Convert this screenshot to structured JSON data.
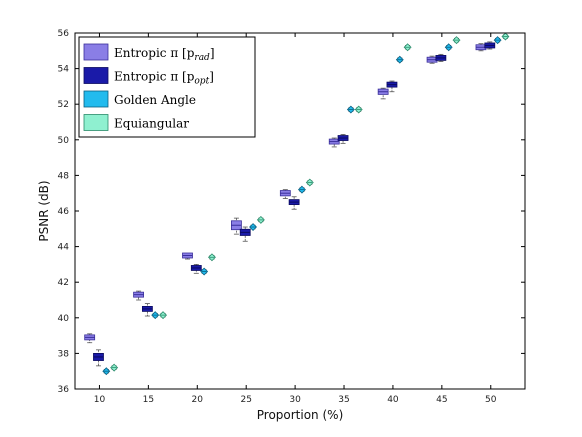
{
  "chart_data": {
    "type": "boxplot",
    "xlabel": "Proportion (%)",
    "ylabel": "PSNR (dB)",
    "xlim": [
      7.5,
      53.5
    ],
    "ylim": [
      36,
      56
    ],
    "xticks": [
      10,
      15,
      20,
      25,
      30,
      35,
      40,
      45,
      50
    ],
    "xtick_labels": [
      "10",
      "15",
      "20",
      "25",
      "30",
      "35",
      "40",
      "45",
      "50"
    ],
    "yticks": [
      36,
      38,
      40,
      42,
      44,
      46,
      48,
      50,
      52,
      54,
      56
    ],
    "ytick_labels": [
      "36",
      "38",
      "40",
      "42",
      "44",
      "46",
      "48",
      "50",
      "52",
      "54",
      "56"
    ],
    "grid": false,
    "legend_position": "top-left",
    "categories": [
      10,
      15,
      20,
      25,
      30,
      35,
      40,
      45,
      50
    ],
    "series": [
      {
        "name": "Entropic π [p_rad]",
        "label_main": "Entropic π [p",
        "label_sub": "rad",
        "label_close": "]",
        "color": "#8a7ee6",
        "edge": "#3a2f9a",
        "marker": "box",
        "x": [
          9,
          14,
          19,
          24,
          29,
          34,
          39,
          44,
          49
        ],
        "median": [
          38.9,
          41.3,
          43.5,
          45.2,
          47.0,
          49.9,
          52.7,
          54.5,
          55.2
        ],
        "q1": [
          38.8,
          41.15,
          43.4,
          44.9,
          46.8,
          49.75,
          52.5,
          54.4,
          55.1
        ],
        "q3": [
          39.05,
          41.4,
          43.55,
          45.4,
          47.1,
          50.0,
          52.8,
          54.6,
          55.3
        ],
        "whisker_low": [
          38.6,
          41.0,
          43.3,
          44.7,
          46.7,
          49.6,
          52.3,
          54.3,
          55.0
        ],
        "whisker_high": [
          39.1,
          41.5,
          43.6,
          45.6,
          47.2,
          50.1,
          52.9,
          54.7,
          55.4
        ]
      },
      {
        "name": "Entropic π [p_opt]",
        "label_main": "Entropic π [p",
        "label_sub": "opt",
        "label_close": "]",
        "color": "#1a1aa8",
        "edge": "#0a0a60",
        "marker": "box",
        "x": [
          9.9,
          14.9,
          19.9,
          24.9,
          29.9,
          34.9,
          39.9,
          44.9,
          49.9
        ],
        "median": [
          37.8,
          40.5,
          42.8,
          44.8,
          46.5,
          50.1,
          53.1,
          54.6,
          55.3
        ],
        "q1": [
          37.6,
          40.35,
          42.7,
          44.6,
          46.35,
          49.95,
          52.95,
          54.5,
          55.2
        ],
        "q3": [
          38.0,
          40.6,
          42.9,
          44.95,
          46.6,
          50.2,
          53.2,
          54.7,
          55.4
        ],
        "whisker_low": [
          37.3,
          40.1,
          42.5,
          44.3,
          46.1,
          49.8,
          52.7,
          54.4,
          55.1
        ],
        "whisker_high": [
          38.2,
          40.8,
          43.0,
          45.1,
          46.8,
          50.3,
          53.3,
          54.8,
          55.5
        ]
      },
      {
        "name": "Golden Angle",
        "label_main": "Golden Angle",
        "label_sub": "",
        "label_close": "",
        "color": "#22bbee",
        "edge": "#0a5f80",
        "marker": "diamond",
        "x": [
          10.7,
          15.7,
          20.7,
          25.7,
          30.7,
          35.7,
          40.7,
          45.7,
          50.7
        ],
        "median": [
          37.0,
          40.15,
          42.6,
          45.1,
          47.2,
          51.7,
          54.5,
          55.2,
          55.6
        ],
        "q1": [
          36.95,
          40.1,
          42.55,
          45.05,
          47.15,
          51.65,
          54.45,
          55.15,
          55.55
        ],
        "q3": [
          37.05,
          40.2,
          42.65,
          45.15,
          47.25,
          51.75,
          54.55,
          55.25,
          55.65
        ],
        "whisker_low": [
          36.9,
          40.05,
          42.5,
          45.0,
          47.1,
          51.6,
          54.4,
          55.1,
          55.5
        ],
        "whisker_high": [
          37.1,
          40.25,
          42.7,
          45.2,
          47.3,
          51.8,
          54.6,
          55.3,
          55.7
        ]
      },
      {
        "name": "Equiangular",
        "label_main": "Equiangular",
        "label_sub": "",
        "label_close": "",
        "color": "#8ff0d0",
        "edge": "#2a8a6a",
        "marker": "diamond",
        "x": [
          11.5,
          16.5,
          21.5,
          26.5,
          31.5,
          36.5,
          41.5,
          46.5,
          51.5
        ],
        "median": [
          37.2,
          40.15,
          43.4,
          45.5,
          47.6,
          51.7,
          55.2,
          55.6,
          55.8
        ],
        "q1": [
          37.15,
          40.1,
          43.35,
          45.45,
          47.55,
          51.65,
          55.15,
          55.55,
          55.75
        ],
        "q3": [
          37.25,
          40.2,
          43.45,
          45.55,
          47.65,
          51.75,
          55.25,
          55.65,
          55.85
        ],
        "whisker_low": [
          37.1,
          40.05,
          43.3,
          45.4,
          47.5,
          51.6,
          55.1,
          55.5,
          55.7
        ],
        "whisker_high": [
          37.3,
          40.25,
          43.5,
          45.6,
          47.7,
          51.8,
          55.3,
          55.7,
          55.9
        ]
      }
    ]
  }
}
